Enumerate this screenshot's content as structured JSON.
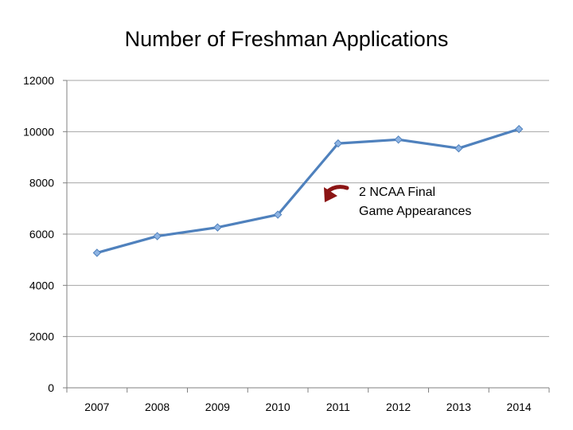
{
  "chart_data": {
    "type": "line",
    "title": "Number of Freshman Applications",
    "xlabel": "",
    "ylabel": "",
    "categories": [
      "2007",
      "2008",
      "2009",
      "2010",
      "2011",
      "2012",
      "2013",
      "2014"
    ],
    "values": [
      5270,
      5920,
      6260,
      6760,
      9540,
      9690,
      9350,
      10100
    ],
    "ylim": [
      0,
      12000
    ],
    "yticks": [
      "0",
      "2000",
      "4000",
      "6000",
      "8000",
      "10000",
      "12000"
    ],
    "grid": "horizontal",
    "legend": "none",
    "line_color": "#4F81BD",
    "marker_color": "#8EB4E3",
    "annotation": {
      "lines": [
        "2 NCAA Final",
        "Game Appearances"
      ],
      "arrow_color": "#8B1414",
      "points_to": "2011"
    }
  }
}
